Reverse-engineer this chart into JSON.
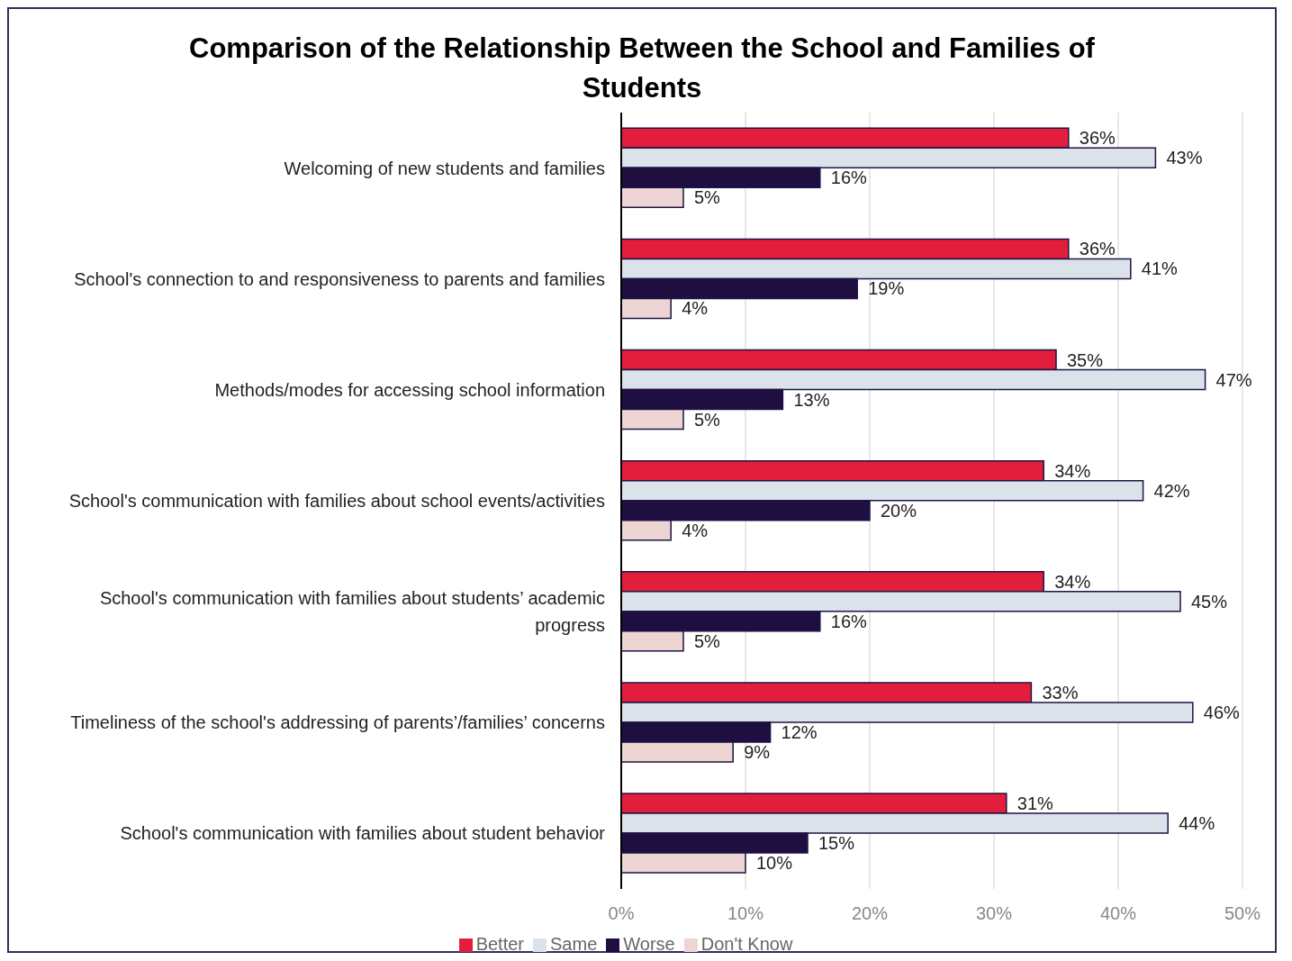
{
  "chart_data": {
    "type": "bar",
    "orientation": "horizontal",
    "title": "Comparison of the Relationship Between the School and Families of Students",
    "categories": [
      "Welcoming of new students and families",
      "School's connection to and responsiveness to parents and families",
      "Methods/modes for accessing school information",
      "School's communication with families about school events/activities",
      "School's communication with families about students’ academic progress",
      "Timeliness of the school's addressing of parents’/families’ concerns",
      "School's communication with families about student behavior"
    ],
    "series": [
      {
        "name": "Better",
        "color": "#e31d3c",
        "values": [
          36,
          36,
          35,
          34,
          34,
          33,
          31
        ],
        "value_labels": [
          "36%",
          "36%",
          "35%",
          "34%",
          "34%",
          "33%",
          "31%"
        ]
      },
      {
        "name": "Same",
        "color": "#dce2ea",
        "values": [
          43,
          41,
          47,
          42,
          45,
          46,
          44
        ],
        "value_labels": [
          "43%",
          "41%",
          "47%",
          "42%",
          "45%",
          "46%",
          "44%"
        ]
      },
      {
        "name": "Worse",
        "color": "#1e0f40",
        "values": [
          16,
          19,
          13,
          20,
          16,
          12,
          15
        ],
        "value_labels": [
          "16%",
          "19%",
          "13%",
          "20%",
          "16%",
          "12%",
          "15%"
        ]
      },
      {
        "name": "Don't Know",
        "color": "#ecd5d3",
        "values": [
          5,
          4,
          5,
          4,
          5,
          9,
          10
        ],
        "value_labels": [
          "5%",
          "4%",
          "5%",
          "4%",
          "5%",
          "9%",
          "10%"
        ]
      }
    ],
    "xlim": [
      0,
      50
    ],
    "xticks": [
      {
        "value": 0,
        "label": "0%"
      },
      {
        "value": 10,
        "label": "10%"
      },
      {
        "value": 20,
        "label": "20%"
      },
      {
        "value": 30,
        "label": "30%"
      },
      {
        "value": 40,
        "label": "40%"
      },
      {
        "value": 50,
        "label": "50%"
      }
    ],
    "grid": "x",
    "legend": "bottom"
  }
}
